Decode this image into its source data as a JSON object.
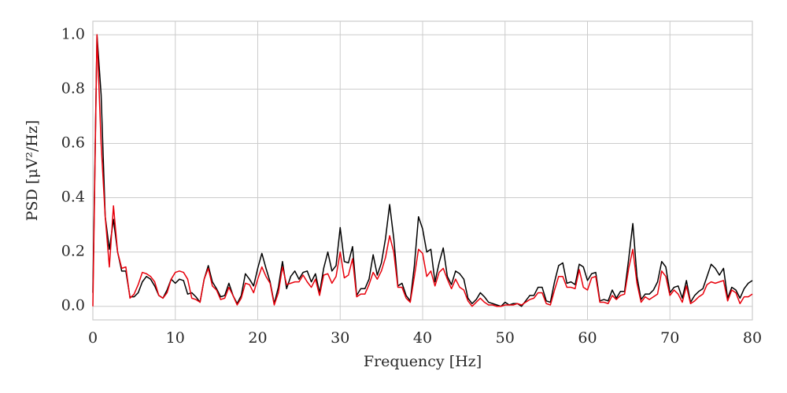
{
  "chart_data": {
    "type": "line",
    "xlabel": "Frequency [Hz]",
    "ylabel": "PSD [μV²/Hz]",
    "x": [
      0,
      0.5,
      1,
      1.5,
      2,
      2.5,
      3,
      3.5,
      4,
      4.5,
      5,
      5.5,
      6,
      6.5,
      7,
      7.5,
      8,
      8.5,
      9,
      9.5,
      10,
      10.5,
      11,
      11.5,
      12,
      12.5,
      13,
      13.5,
      14,
      14.5,
      15,
      15.5,
      16,
      16.5,
      17,
      17.5,
      18,
      18.5,
      19,
      19.5,
      20,
      20.5,
      21,
      21.5,
      22,
      22.5,
      23,
      23.5,
      24,
      24.5,
      25,
      25.5,
      26,
      26.5,
      27,
      27.5,
      28,
      28.5,
      29,
      29.5,
      30,
      30.5,
      31,
      31.5,
      32,
      32.5,
      33,
      33.5,
      34,
      34.5,
      35,
      35.5,
      36,
      36.5,
      37,
      37.5,
      38,
      38.5,
      39,
      39.5,
      40,
      40.5,
      41,
      41.5,
      42,
      42.5,
      43,
      43.5,
      44,
      44.5,
      45,
      45.5,
      46,
      46.5,
      47,
      47.5,
      48,
      48.5,
      49,
      49.5,
      50,
      50.5,
      51,
      51.5,
      52,
      52.5,
      53,
      53.5,
      54,
      54.5,
      55,
      55.5,
      56,
      56.5,
      57,
      57.5,
      58,
      58.5,
      59,
      59.5,
      60,
      60.5,
      61,
      61.5,
      62,
      62.5,
      63,
      63.5,
      64,
      64.5,
      65,
      65.5,
      66,
      66.5,
      67,
      67.5,
      68,
      68.5,
      69,
      69.5,
      70,
      70.5,
      71,
      71.5,
      72,
      72.5,
      73,
      73.5,
      74,
      74.5,
      75,
      75.5,
      76,
      76.5,
      77,
      77.5,
      78,
      78.5,
      79,
      79.5,
      80
    ],
    "series": [
      {
        "color": "#000000",
        "values": [
          0.05,
          1.0,
          0.78,
          0.33,
          0.21,
          0.32,
          0.2,
          0.13,
          0.13,
          0.035,
          0.035,
          0.05,
          0.09,
          0.11,
          0.1,
          0.075,
          0.04,
          0.03,
          0.06,
          0.1,
          0.085,
          0.1,
          0.095,
          0.045,
          0.05,
          0.035,
          0.015,
          0.1,
          0.15,
          0.09,
          0.065,
          0.035,
          0.04,
          0.085,
          0.04,
          0.01,
          0.04,
          0.12,
          0.1,
          0.075,
          0.14,
          0.195,
          0.14,
          0.09,
          0.01,
          0.07,
          0.165,
          0.065,
          0.11,
          0.13,
          0.1,
          0.125,
          0.13,
          0.09,
          0.12,
          0.05,
          0.14,
          0.2,
          0.13,
          0.15,
          0.29,
          0.165,
          0.16,
          0.22,
          0.04,
          0.065,
          0.065,
          0.1,
          0.19,
          0.115,
          0.16,
          0.25,
          0.375,
          0.25,
          0.075,
          0.085,
          0.04,
          0.02,
          0.15,
          0.33,
          0.285,
          0.2,
          0.21,
          0.09,
          0.16,
          0.215,
          0.11,
          0.08,
          0.13,
          0.12,
          0.1,
          0.03,
          0.01,
          0.025,
          0.05,
          0.035,
          0.015,
          0.01,
          0.005,
          0.0,
          0.015,
          0.005,
          0.01,
          0.01,
          0.0,
          0.02,
          0.04,
          0.04,
          0.07,
          0.07,
          0.02,
          0.015,
          0.09,
          0.15,
          0.16,
          0.085,
          0.09,
          0.08,
          0.155,
          0.145,
          0.095,
          0.12,
          0.125,
          0.02,
          0.025,
          0.02,
          0.06,
          0.03,
          0.055,
          0.055,
          0.175,
          0.305,
          0.11,
          0.025,
          0.045,
          0.045,
          0.06,
          0.09,
          0.165,
          0.145,
          0.05,
          0.07,
          0.075,
          0.03,
          0.095,
          0.015,
          0.04,
          0.055,
          0.065,
          0.11,
          0.155,
          0.14,
          0.115,
          0.14,
          0.03,
          0.07,
          0.06,
          0.03,
          0.065,
          0.085,
          0.095
        ]
      },
      {
        "color": "#e8000b",
        "values": [
          0.0,
          1.0,
          0.6,
          0.33,
          0.145,
          0.37,
          0.2,
          0.14,
          0.145,
          0.03,
          0.045,
          0.08,
          0.125,
          0.12,
          0.11,
          0.09,
          0.04,
          0.03,
          0.05,
          0.1,
          0.125,
          0.13,
          0.125,
          0.1,
          0.03,
          0.025,
          0.015,
          0.1,
          0.14,
          0.075,
          0.06,
          0.025,
          0.03,
          0.07,
          0.04,
          0.005,
          0.03,
          0.085,
          0.08,
          0.05,
          0.1,
          0.145,
          0.11,
          0.085,
          0.005,
          0.05,
          0.145,
          0.08,
          0.085,
          0.09,
          0.09,
          0.115,
          0.09,
          0.07,
          0.1,
          0.04,
          0.115,
          0.12,
          0.085,
          0.11,
          0.2,
          0.105,
          0.115,
          0.175,
          0.035,
          0.045,
          0.045,
          0.08,
          0.125,
          0.1,
          0.13,
          0.18,
          0.26,
          0.2,
          0.07,
          0.07,
          0.03,
          0.015,
          0.11,
          0.21,
          0.195,
          0.11,
          0.13,
          0.075,
          0.125,
          0.14,
          0.1,
          0.065,
          0.1,
          0.07,
          0.06,
          0.02,
          0.0,
          0.015,
          0.03,
          0.015,
          0.005,
          0.005,
          0.0,
          0.0,
          0.005,
          0.005,
          0.005,
          0.01,
          0.005,
          0.015,
          0.025,
          0.03,
          0.05,
          0.05,
          0.01,
          0.005,
          0.06,
          0.11,
          0.11,
          0.07,
          0.07,
          0.065,
          0.135,
          0.07,
          0.06,
          0.105,
          0.11,
          0.015,
          0.015,
          0.01,
          0.04,
          0.025,
          0.04,
          0.045,
          0.14,
          0.21,
          0.085,
          0.015,
          0.035,
          0.025,
          0.035,
          0.045,
          0.13,
          0.11,
          0.04,
          0.06,
          0.045,
          0.015,
          0.075,
          0.01,
          0.02,
          0.035,
          0.045,
          0.08,
          0.09,
          0.085,
          0.09,
          0.095,
          0.02,
          0.06,
          0.05,
          0.01,
          0.035,
          0.035,
          0.045
        ]
      }
    ],
    "xlim": [
      0,
      80
    ],
    "xticks": [
      0,
      10,
      20,
      30,
      40,
      50,
      60,
      70,
      80
    ],
    "ylim": [
      -0.05,
      1.05
    ],
    "yticks": [
      {
        "value": 0,
        "label": "0.0"
      },
      0.2,
      0.4,
      0.6,
      0.8,
      {
        "value": 1,
        "label": "1.0"
      }
    ],
    "grid": true
  }
}
